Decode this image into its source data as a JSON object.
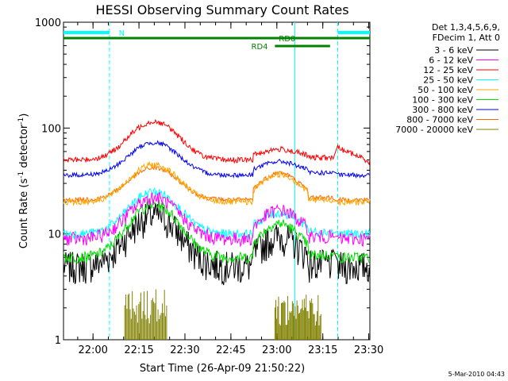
{
  "chart_data": {
    "type": "line",
    "title": "HESSI Observing Summary Count Rates",
    "xlabel": "Start Time (26-Apr-09 21:50:22)",
    "ylabel_main": "Count Rate (s",
    "ylabel_sup1": "-1",
    "ylabel_mid": " detector",
    "ylabel_sup2": "-1",
    "ylabel_end": ")",
    "y_scale": "log",
    "ylim": [
      1,
      1000
    ],
    "xlim_minutes": [
      0,
      100
    ],
    "x_ticks": [
      {
        "label": "22:00",
        "minute": 9.633
      },
      {
        "label": "22:15",
        "minute": 24.633
      },
      {
        "label": "22:30",
        "minute": 39.633
      },
      {
        "label": "22:45",
        "minute": 54.633
      },
      {
        "label": "23:00",
        "minute": 69.633
      },
      {
        "label": "23:15",
        "minute": 84.633
      },
      {
        "label": "23:30",
        "minute": 99.633
      }
    ],
    "y_ticks": [
      {
        "label": "1",
        "value": 1
      },
      {
        "label": "10",
        "value": 10
      },
      {
        "label": "100",
        "value": 100
      },
      {
        "label": "1000",
        "value": 1000
      }
    ],
    "legend_header": [
      "Det 1,3,4,5,6,9,",
      "FDecim 1, Att 0"
    ],
    "legend_position": "right",
    "series": [
      {
        "name": "3 - 6 keV",
        "color": "#000000",
        "base": 5.0,
        "peak1": 15.0,
        "peak2": 9.0,
        "amp": 0.35
      },
      {
        "name": "6 - 12 keV",
        "color": "#ff00ff",
        "base": 9.0,
        "peak1": 22.0,
        "peak2": 16.0,
        "amp": 0.15
      },
      {
        "name": "12 - 25 keV",
        "color": "#ff0000",
        "base": 50.0,
        "peak1": 115.0,
        "peak2": 60.0,
        "amp": 0.06
      },
      {
        "name": "25 - 50 keV",
        "color": "#00ffff",
        "base": 10.0,
        "peak1": 25.0,
        "peak2": 15.0,
        "amp": 0.1
      },
      {
        "name": "50 - 100 keV",
        "color": "#ffa500",
        "base": 20.0,
        "peak1": 45.0,
        "peak2": 35.0,
        "amp": 0.07
      },
      {
        "name": "100 - 300 keV",
        "color": "#00dd00",
        "base": 6.0,
        "peak1": 19.0,
        "peak2": 12.0,
        "amp": 0.12
      },
      {
        "name": "300 - 800 keV",
        "color": "#0000ff",
        "base": 36.0,
        "peak1": 73.0,
        "peak2": 46.0,
        "amp": 0.05
      },
      {
        "name": "800 - 7000 keV",
        "color": "#ff6a00",
        "base": 21.0,
        "peak1": 42.0,
        "peak2": 36.0,
        "amp": 0.05
      },
      {
        "name": "7000 - 20000 keV",
        "color": "#808000",
        "base": 1.0,
        "peak1": 3.0,
        "peak2": 2.5,
        "amp": 0.0
      }
    ],
    "annotations": {
      "N": "N",
      "RD0": "RD0",
      "RD4": "RD4"
    },
    "footer": "5-Mar-2010 04:43"
  }
}
